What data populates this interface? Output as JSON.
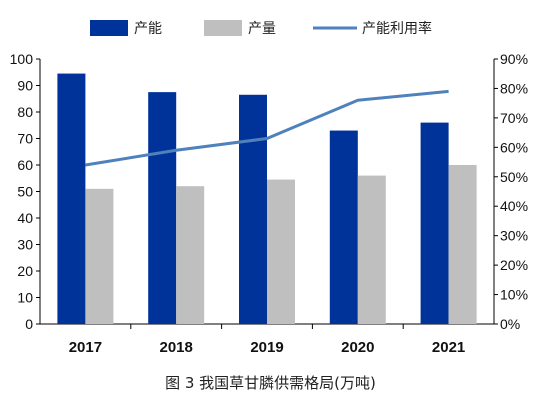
{
  "caption": "图 3   我国草甘膦供需格局(万吨)",
  "chart_data": {
    "type": "bar",
    "categories": [
      "2017",
      "2018",
      "2019",
      "2020",
      "2021"
    ],
    "series": [
      {
        "name": "产能",
        "type": "bar",
        "axis": "left",
        "color": "#003399",
        "values": [
          94.5,
          87.5,
          86.5,
          73,
          76
        ]
      },
      {
        "name": "产量",
        "type": "bar",
        "axis": "left",
        "color": "#bfbfbf",
        "values": [
          51,
          52,
          54.5,
          56,
          60
        ]
      },
      {
        "name": "产能利用率",
        "type": "line",
        "axis": "right",
        "color": "#4f81bd",
        "values": [
          0.54,
          0.59,
          0.63,
          0.76,
          0.79
        ]
      }
    ],
    "ylim_left": [
      0,
      100
    ],
    "yticks_left": [
      "0",
      "10",
      "20",
      "30",
      "40",
      "50",
      "60",
      "70",
      "80",
      "90",
      "100"
    ],
    "ylim_right": [
      0,
      0.9
    ],
    "yticks_right": [
      "0%",
      "10%",
      "20%",
      "30%",
      "40%",
      "50%",
      "60%",
      "70%",
      "80%",
      "90%"
    ],
    "legend_position": "top",
    "grid": false
  }
}
